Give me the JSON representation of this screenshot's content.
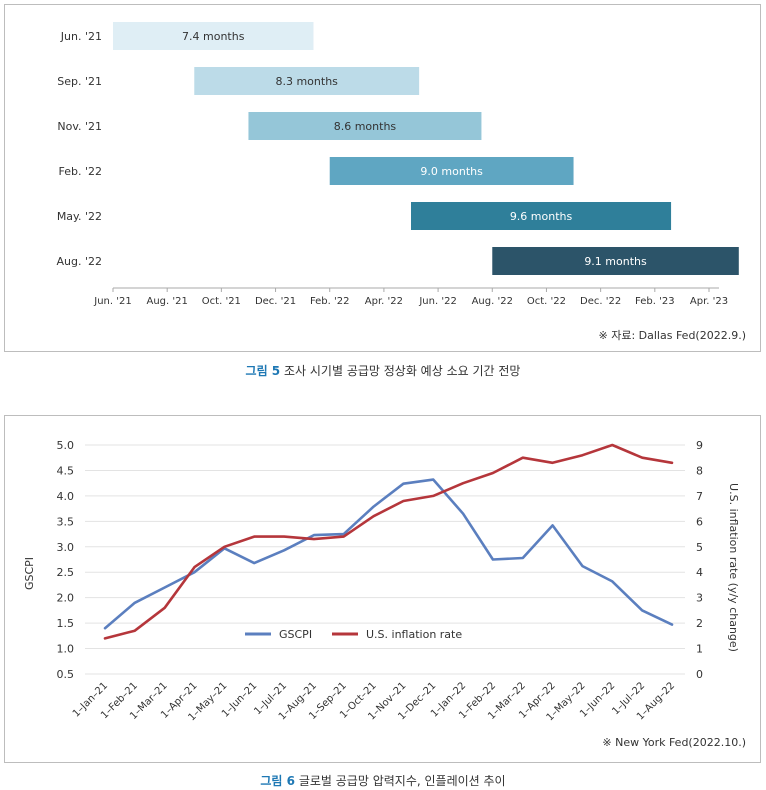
{
  "figure1": {
    "source": "※ 자료: Dallas Fed(2022.9.)",
    "caption_label": "그림 5",
    "caption_text": "조사 시기별 공급망 정상화 예상 소요 기간 전망",
    "chart_data": {
      "type": "bar",
      "orientation": "horizontal-gantt",
      "categories": [
        "Jun. '21",
        "Sep. '21",
        "Nov. '21",
        "Feb. '22",
        "May. '22",
        "Aug. '22"
      ],
      "bar_labels": [
        "7.4 months",
        "8.3 months",
        "8.6 months",
        "9.0 months",
        "9.6 months",
        "9.1 months"
      ],
      "start": [
        "2021-06",
        "2021-09",
        "2021-11",
        "2022-02",
        "2022-05",
        "2022-08"
      ],
      "duration_months": [
        7.4,
        8.3,
        8.6,
        9.0,
        9.6,
        9.1
      ],
      "x_ticks": [
        "Jun. '21",
        "Aug. '21",
        "Oct. '21",
        "Dec. '21",
        "Feb. '22",
        "Apr. '22",
        "Jun. '22",
        "Aug. '22",
        "Oct. '22",
        "Dec. '22",
        "Feb. '23",
        "Apr. '23"
      ],
      "xlim": [
        "2021-06",
        "2023-04"
      ],
      "colors": [
        "#dfeef5",
        "#bcdbe8",
        "#95c6d8",
        "#5fa6c2",
        "#2f7f9a",
        "#2c5469"
      ],
      "label_colors": [
        "#333333",
        "#333333",
        "#333333",
        "#ffffff",
        "#ffffff",
        "#ffffff"
      ]
    }
  },
  "figure2": {
    "source": "※ New York Fed(2022.10.)",
    "caption_label": "그림 6",
    "caption_text": "글로벌 공급망 압력지수, 인플레이션 추이",
    "chart_data": {
      "type": "line",
      "x": [
        "1-Jan-21",
        "1-Feb-21",
        "1-Mar-21",
        "1-Apr-21",
        "1-May-21",
        "1-Jun-21",
        "1-Jul-21",
        "1-Aug-21",
        "1-Sep-21",
        "1-Oct-21",
        "1-Nov-21",
        "1-Dec-21",
        "1-Jan-22",
        "1-Feb-22",
        "1-Mar-22",
        "1-Apr-22",
        "1-May-22",
        "1-Jun-22",
        "1-Jul-22",
        "1-Aug-22"
      ],
      "x_tick_labels": [
        "1–Jan–21",
        "1–Feb–21",
        "1–Mar–21",
        "1–Apr–21",
        "1–May–21",
        "1–Jun–21",
        "1–Jul–21",
        "1–Aug–21",
        "1–Sep–21",
        "1–Oct–21",
        "1–Nov–21",
        "1–Dec–21",
        "1–Jan–22",
        "1–Feb–22",
        "1–Mar–22",
        "1–Apr–22",
        "1–May–22",
        "1–Jun–22",
        "1–Jul–22",
        "1–Aug–22"
      ],
      "series": [
        {
          "name": "GSCPI",
          "axis": "left",
          "color": "#5b7fbf",
          "values": [
            1.4,
            1.9,
            2.2,
            2.5,
            2.97,
            2.68,
            2.93,
            3.23,
            3.25,
            3.79,
            4.24,
            4.32,
            3.65,
            2.75,
            2.78,
            3.42,
            2.62,
            2.32,
            1.75,
            1.47
          ]
        },
        {
          "name": "U.S. inflation rate",
          "axis": "right",
          "color": "#b5363b",
          "values": [
            1.4,
            1.7,
            2.6,
            4.2,
            5.0,
            5.4,
            5.4,
            5.3,
            5.4,
            6.2,
            6.8,
            7.0,
            7.5,
            7.9,
            8.5,
            8.3,
            8.6,
            9.0,
            8.5,
            8.3
          ]
        }
      ],
      "left_axis": {
        "label": "GSCPI",
        "ylim": [
          0.5,
          5.0
        ],
        "ticks": [
          "0.5",
          "1.0",
          "1.5",
          "2.0",
          "2.5",
          "3.0",
          "3.5",
          "4.0",
          "4.5",
          "5.0"
        ]
      },
      "right_axis": {
        "label": "U.S. inflation rate (y/y change)",
        "ylim": [
          0,
          9
        ],
        "ticks": [
          "0",
          "1",
          "2",
          "3",
          "4",
          "5",
          "6",
          "7",
          "8",
          "9"
        ]
      },
      "grid": true,
      "legend": "bottom-center"
    }
  }
}
